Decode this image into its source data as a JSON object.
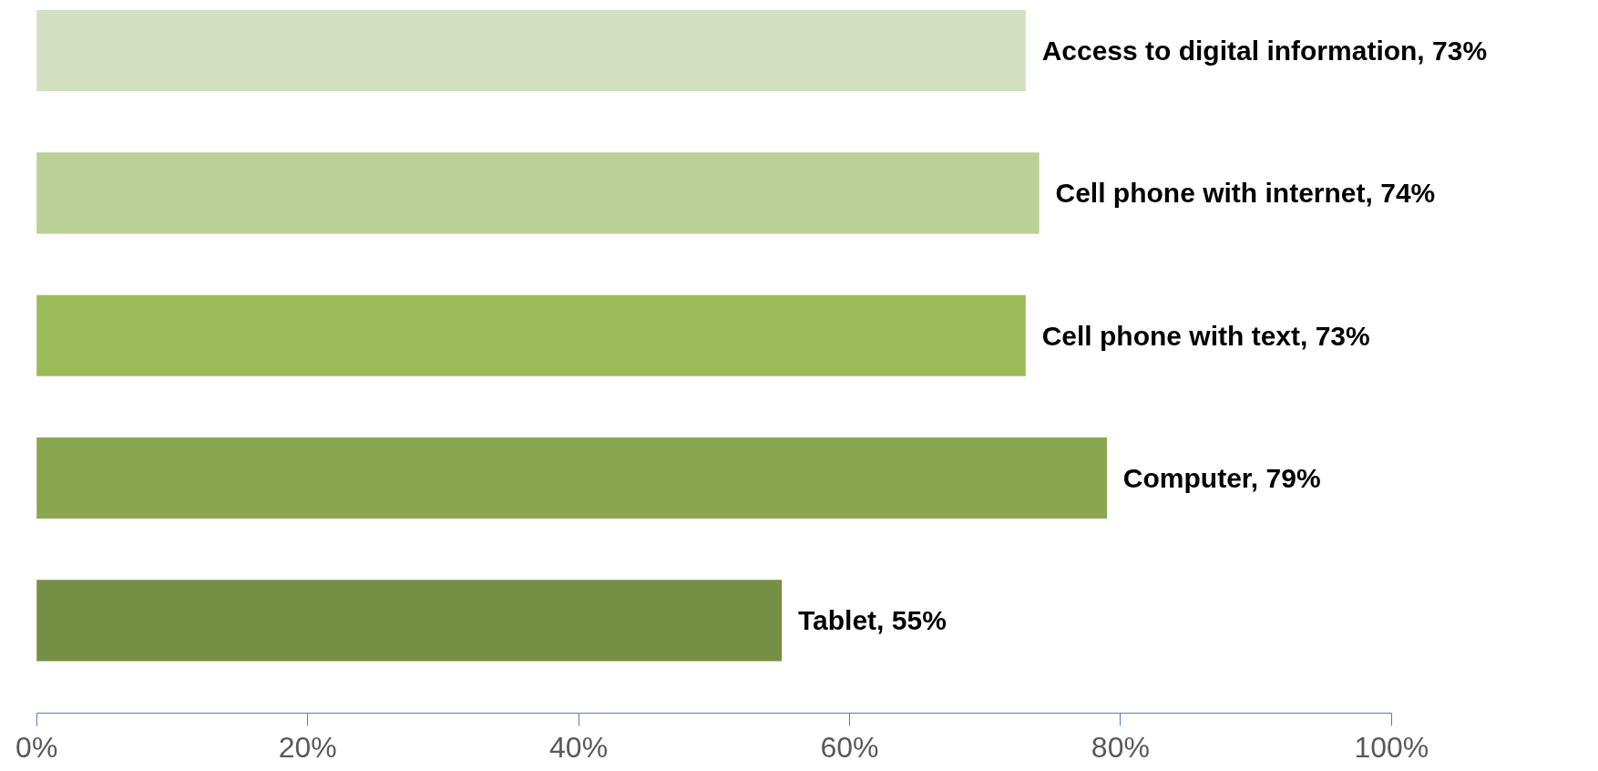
{
  "chart_data": {
    "type": "bar",
    "orientation": "horizontal",
    "categories": [
      "Access to digital information",
      "Cell phone with internet",
      "Cell phone with text",
      "Computer",
      "Tablet"
    ],
    "values": [
      73,
      74,
      73,
      79,
      55
    ],
    "colors": [
      "#d2dfc0",
      "#bbd097",
      "#9bbb59",
      "#8aa74f",
      "#758f44"
    ],
    "value_labels": [
      ", 73%",
      ", 74%",
      ", 73%",
      ", 79%",
      ", 55%"
    ],
    "xlim": [
      0,
      100
    ],
    "xticks": [
      {
        "value": 0,
        "label": "0%"
      },
      {
        "value": 20,
        "label": "20%"
      },
      {
        "value": 40,
        "label": "40%"
      },
      {
        "value": 60,
        "label": "60%"
      },
      {
        "value": 80,
        "label": "80%"
      },
      {
        "value": 100,
        "label": "100%"
      }
    ],
    "tick_labels": "x",
    "grid": false
  }
}
